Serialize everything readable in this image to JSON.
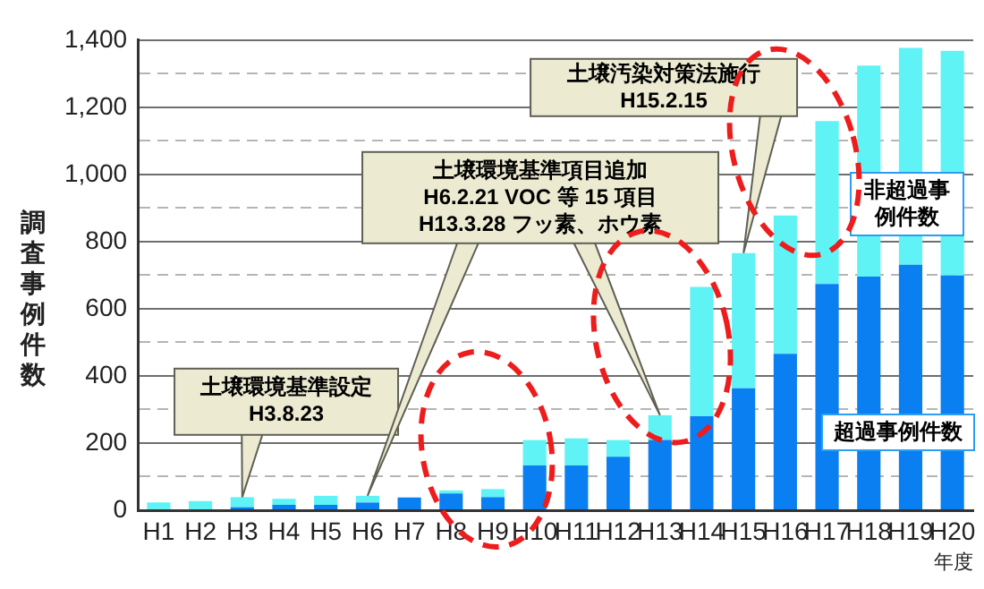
{
  "chart_data": {
    "type": "bar",
    "stacked": true,
    "ylabel": "調査事例件数",
    "xlabel": "年度",
    "categories": [
      "H1",
      "H2",
      "H3",
      "H4",
      "H5",
      "H6",
      "H7",
      "H8",
      "H9",
      "H10",
      "H11",
      "H12",
      "H13",
      "H14",
      "H15",
      "H16",
      "H17",
      "H18",
      "H19",
      "H20"
    ],
    "series": [
      {
        "name": "超過事例件数",
        "color": "#0a7ff2",
        "values": [
          0,
          0,
          9,
          16,
          16,
          23,
          38,
          50,
          39,
          133,
          133,
          159,
          209,
          280,
          363,
          466,
          674,
          696,
          731,
          699
        ]
      },
      {
        "name": "非超過事例件数",
        "color": "#5ff3f5",
        "values": [
          23,
          27,
          30,
          18,
          27,
          20,
          0,
          9,
          24,
          76,
          81,
          50,
          74,
          385,
          403,
          412,
          485,
          628,
          646,
          669
        ]
      }
    ],
    "ylim": [
      0,
      1400
    ],
    "yticks": [
      0,
      {
        "value": 100,
        "label": null
      },
      200,
      {
        "value": 300,
        "label": null
      },
      400,
      {
        "value": 500,
        "label": null
      },
      600,
      {
        "value": 700,
        "label": null
      },
      800,
      {
        "value": 900,
        "label": null
      },
      {
        "value": 1000,
        "label": "1,000"
      },
      {
        "value": 1100,
        "label": null
      },
      {
        "value": 1200,
        "label": "1,200"
      },
      {
        "value": 1300,
        "label": null
      },
      {
        "value": 1400,
        "label": "1,400"
      }
    ],
    "grid": "y",
    "annotations": [
      "土壌環境基準設定\nH3.8.23",
      "土壌環境基準項目追加\nH6.2.21 VOC 等 15 項目\nH13.3.28 フッ素、ホウ素",
      "土壌汚染対策法施行\nH15.2.15"
    ]
  }
}
